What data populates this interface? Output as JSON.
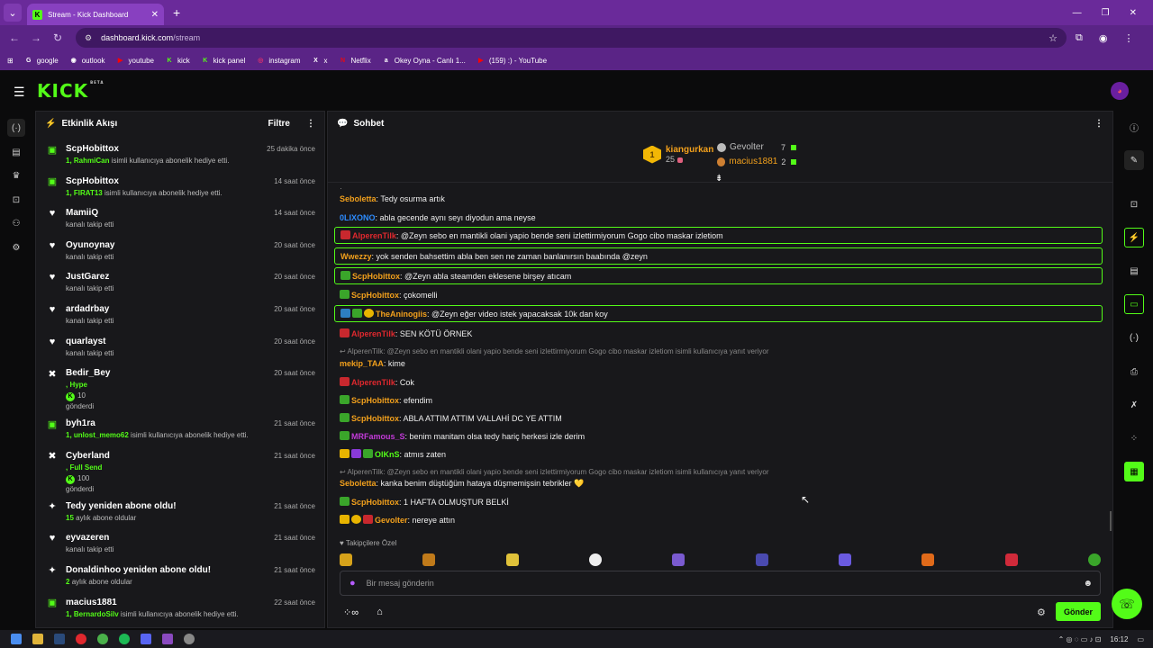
{
  "browser": {
    "tab_title": "Stream - Kick Dashboard",
    "url_host": "dashboard.kick.com",
    "url_path": "/stream",
    "bookmarks": [
      {
        "label": "google",
        "color": "#ffffff",
        "glyph": "G"
      },
      {
        "label": "outlook",
        "color": "#ffffff",
        "glyph": "◉"
      },
      {
        "label": "youtube",
        "color": "#ff0000",
        "glyph": "▶"
      },
      {
        "label": "kick",
        "color": "#53fc18",
        "glyph": "K"
      },
      {
        "label": "kick panel",
        "color": "#53fc18",
        "glyph": "K"
      },
      {
        "label": "instagram",
        "color": "#e1306c",
        "glyph": "◎"
      },
      {
        "label": "x",
        "color": "#ffffff",
        "glyph": "X"
      },
      {
        "label": "Netflix",
        "color": "#e50914",
        "glyph": "N"
      },
      {
        "label": "Okey Oyna - Canlı 1...",
        "color": "#ffffff",
        "glyph": "a"
      },
      {
        "label": "(159) :) - YouTube",
        "color": "#ff0000",
        "glyph": "▶"
      }
    ]
  },
  "brand": {
    "logo": "KICK",
    "beta": "BETA",
    "accent": "#53fc18"
  },
  "activity": {
    "title": "Etkinlik Akışı",
    "filter_label": "Filtre",
    "events": [
      {
        "type": "gift",
        "name": "ScpHobittox",
        "time": "25 dakika önce",
        "highlight": "1, RahmiCan",
        "text": "isimli kullanıcıya abonelik hediye etti."
      },
      {
        "type": "gift",
        "name": "ScpHobittox",
        "time": "14 saat önce",
        "highlight": "1, FIRAT13",
        "text": "isimli kullanıcıya abonelik hediye etti."
      },
      {
        "type": "follow",
        "name": "MamiiQ",
        "time": "14 saat önce",
        "highlight": "",
        "text": "kanalı takip etti"
      },
      {
        "type": "follow",
        "name": "Oyunoynay",
        "time": "20 saat önce",
        "highlight": "",
        "text": "kanalı takip etti"
      },
      {
        "type": "follow",
        "name": "JustGarez",
        "time": "20 saat önce",
        "highlight": "",
        "text": "kanalı takip etti"
      },
      {
        "type": "follow",
        "name": "ardadrbay",
        "time": "20 saat önce",
        "highlight": "",
        "text": "kanalı takip etti"
      },
      {
        "type": "follow",
        "name": "quarlayst",
        "time": "20 saat önce",
        "highlight": "",
        "text": "kanalı takip etti"
      },
      {
        "type": "kicks",
        "name": "Bedir_Bey",
        "time": "20 saat önce",
        "highlight": ", Hype",
        "amount": "10",
        "text": "gönderdi"
      },
      {
        "type": "gift",
        "name": "byh1ra",
        "time": "21 saat önce",
        "highlight": "1, unlost_memo62",
        "text": "isimli kullanıcıya abonelik hediye etti."
      },
      {
        "type": "kicks",
        "name": "Cyberland",
        "time": "21 saat önce",
        "highlight": ", Full Send",
        "amount": "100",
        "text": "gönderdi"
      },
      {
        "type": "resub",
        "name": "Tedy yeniden abone oldu!",
        "time": "21 saat önce",
        "highlight": "15",
        "text": "aylık abone oldular"
      },
      {
        "type": "follow",
        "name": "eyvazeren",
        "time": "21 saat önce",
        "highlight": "",
        "text": "kanalı takip etti"
      },
      {
        "type": "resub",
        "name": "Donaldinhoo yeniden abone oldu!",
        "time": "21 saat önce",
        "highlight": "2",
        "text": "aylık abone oldular"
      },
      {
        "type": "gift",
        "name": "macius1881",
        "time": "22 saat önce",
        "highlight": "1, BernardoSilv",
        "text": "isimli kullanıcıya abonelik hediye etti."
      }
    ]
  },
  "chat": {
    "title": "Sohbet",
    "leaderboard": {
      "first": {
        "rank": "1",
        "name": "kiangurkan",
        "count": "25"
      },
      "others": [
        {
          "name": "Gevolter",
          "count": "7",
          "color": "#bbbbbb"
        },
        {
          "name": "macius1881",
          "count": "2",
          "color": "#f2a01c"
        }
      ]
    },
    "messages": [
      {
        "badges": [],
        "user": "Seboletta",
        "color": "#f2a01c",
        "text": ": Tedy osurma artık",
        "hl": false
      },
      {
        "badges": [],
        "user": "0LIXONO",
        "color": "#2d8cff",
        "text": ": abla gecende aynı seyı diyodun ama neyse",
        "hl": false
      },
      {
        "badges": [
          "red"
        ],
        "user": "AlperenTilk",
        "color": "#e0282e",
        "text": ": @Zeyn sebo en mantikli olani yapio bende seni izlettirmiyorum Gogo cibo maskar izletiom",
        "hl": true
      },
      {
        "badges": [],
        "user": "Wwezzy",
        "color": "#f2a01c",
        "text": ": yok senden bahsettim abla ben sen ne zaman banlanırsın baabında @zeyn",
        "hl": true
      },
      {
        "badges": [
          "grn"
        ],
        "user": "ScpHobittox",
        "color": "#f2a01c",
        "text": ": @Zeyn abla steamden eklesene birşey atıcam",
        "hl": true
      },
      {
        "badges": [
          "grn"
        ],
        "user": "ScpHobittox",
        "color": "#f2a01c",
        "text": ": çokomelli",
        "hl": false
      },
      {
        "badges": [
          "blu",
          "grn",
          "cir"
        ],
        "user": "TheAninogiis",
        "color": "#f2a01c",
        "text": ": @Zeyn eğer video istek yapacaksak 10k dan koy",
        "hl": true
      },
      {
        "badges": [
          "red"
        ],
        "user": "AlperenTilk",
        "color": "#e0282e",
        "text": ": SEN KÖTÜ ÖRNEK",
        "hl": false
      },
      {
        "reply": "AlperenTilk: @Zeyn sebo en mantikli olani yapio bende seni izlettirmiyorum Gogo cibo maskar izletiom isimli kullanıcıya yanıt veriyor"
      },
      {
        "badges": [],
        "user": "mekip_TAA",
        "color": "#f2a01c",
        "text": ": kime",
        "hl": false
      },
      {
        "badges": [
          "red"
        ],
        "user": "AlperenTilk",
        "color": "#e0282e",
        "text": ": Cok",
        "hl": false
      },
      {
        "badges": [
          "grn"
        ],
        "user": "ScpHobittox",
        "color": "#f2a01c",
        "text": ": efendim",
        "hl": false
      },
      {
        "badges": [
          "grn"
        ],
        "user": "ScpHobittox",
        "color": "#f2a01c",
        "text": ": ABLA ATTIM ATTIM VALLAHİ DC YE ATTIM",
        "hl": false
      },
      {
        "badges": [
          "grn"
        ],
        "user": "MRFamous_S",
        "color": "#c23ad8",
        "text": ": benim manitam olsa tedy hariç herkesi izle derim",
        "hl": false
      },
      {
        "badges": [
          "gld",
          "pur",
          "grn"
        ],
        "user": "OlKnS",
        "color": "#53fc18",
        "text": ": atmıs zaten",
        "hl": false
      },
      {
        "reply": "AlperenTilk: @Zeyn sebo en mantikli olani yapio bende seni izlettirmiyorum Gogo cibo maskar izletiom isimli kullanıcıya yanıt veriyor"
      },
      {
        "badges": [],
        "user": "Seboletta",
        "color": "#f2a01c",
        "text": ": kanka benim düştüğüm hataya düşmemişsin tebrikler 💛",
        "hl": false
      },
      {
        "badges": [
          "grn"
        ],
        "user": "ScpHobittox",
        "color": "#f2a01c",
        "text": ": 1 HAFTA OLMUŞTUR BELKİ",
        "hl": false
      },
      {
        "badges": [
          "gld",
          "cir",
          "red"
        ],
        "user": "Gevolter",
        "color": "#f2a01c",
        "text": ": nereye attın",
        "hl": false
      }
    ],
    "followers_only": "Takipçilere Özel",
    "input_placeholder": "Bir mesaj gönderin",
    "send_label": "Gönder"
  },
  "system": {
    "clock": "16:12"
  }
}
